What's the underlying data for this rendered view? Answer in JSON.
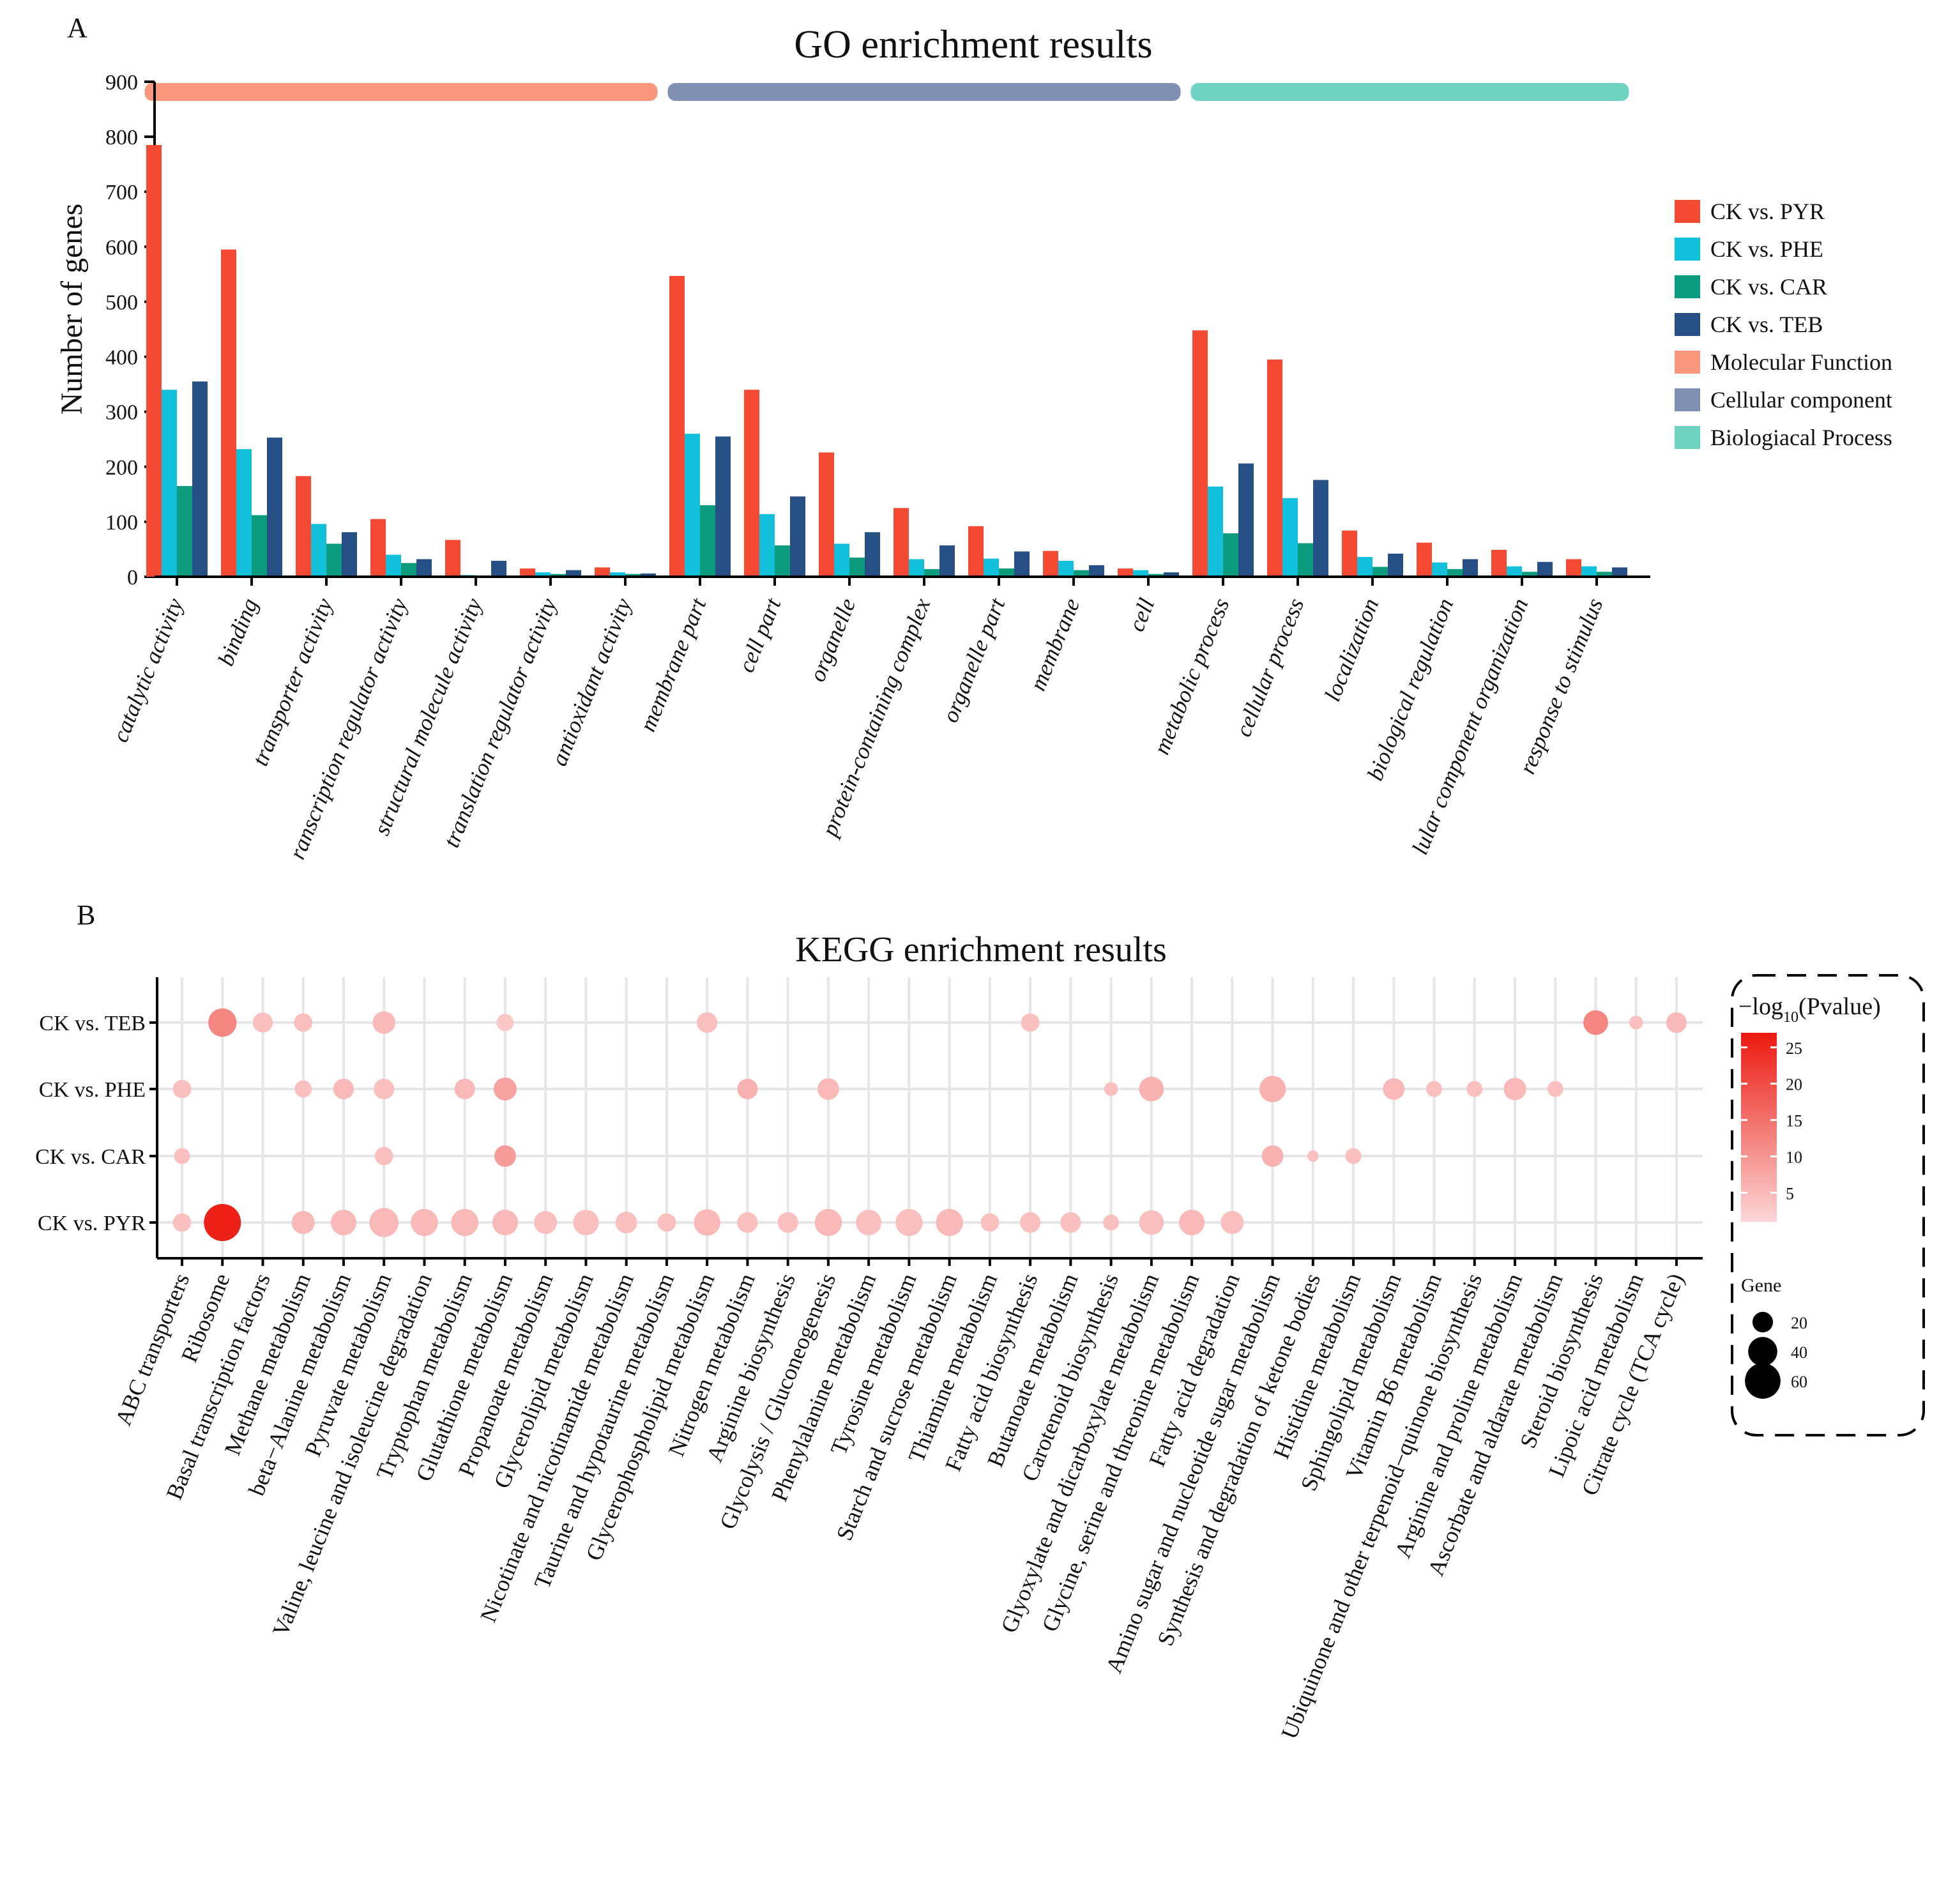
{
  "panel_a_label": "A",
  "panel_b_label": "B",
  "chart_data": [
    {
      "type": "bar",
      "title": "GO enrichment results",
      "xlabel": "",
      "ylabel": "Number of genes",
      "ylim": [
        0,
        900
      ],
      "yticks": [
        0,
        100,
        200,
        300,
        400,
        500,
        600,
        700,
        800,
        900
      ],
      "categories": [
        "catalytic activity",
        "binding",
        "transporter activity",
        "ranscription regulator activity",
        "structural molecule activity",
        "translation regulator activity",
        "antioxidant activity",
        "membrane part",
        "cell part",
        "organelle",
        "protein-containing complex",
        "organelle part",
        "membrane",
        "cell",
        "metabolic process",
        "cellular process",
        "localization",
        "biological regulation",
        "lular component organization",
        "response to stimulus"
      ],
      "series": [
        {
          "name": "CK vs. PYR",
          "color": "#f44a33",
          "values": [
            785,
            595,
            183,
            105,
            67,
            15,
            17,
            547,
            340,
            226,
            125,
            92,
            47,
            15,
            448,
            395,
            84,
            62,
            49,
            32
          ]
        },
        {
          "name": "CK vs. PHE",
          "color": "#12c0dc",
          "values": [
            340,
            232,
            96,
            40,
            3,
            8,
            8,
            260,
            114,
            60,
            32,
            33,
            29,
            12,
            164,
            143,
            36,
            26,
            19,
            19
          ]
        },
        {
          "name": "CK vs. CAR",
          "color": "#0c9c7d",
          "values": [
            165,
            112,
            60,
            25,
            2,
            5,
            5,
            130,
            57,
            35,
            14,
            15,
            12,
            5,
            79,
            61,
            18,
            14,
            9,
            9
          ]
        },
        {
          "name": "CK vs. TEB",
          "color": "#254f85",
          "values": [
            355,
            253,
            81,
            32,
            29,
            12,
            6,
            255,
            146,
            81,
            57,
            46,
            21,
            8,
            206,
            176,
            42,
            32,
            27,
            17
          ]
        }
      ],
      "groups": [
        {
          "name": "Molecular Function",
          "color": "#f8977b",
          "count": 7
        },
        {
          "name": "Cellular component",
          "color": "#8090b2",
          "count": 7
        },
        {
          "name": "Biologiacal Process",
          "color": "#6ed3c1",
          "count": 6
        }
      ],
      "legend_position": "right"
    },
    {
      "type": "scatter",
      "title": "KEGG enrichment results",
      "x_categories": [
        "ABC transporters",
        "Ribosome",
        "Basal transcription factors",
        "Methane metabolism",
        "beta−Alanine metabolism",
        "Pyruvate metabolism",
        "Valine, leucine and isoleucine degradation",
        "Tryptophan metabolism",
        "Glutathione metabolism",
        "Propanoate metabolism",
        "Glycerolipid metabolism",
        "Nicotinate and nicotinamide metabolism",
        "Taurine and hypotaurine metabolism",
        "Glycerophospholipid metabolism",
        "Nitrogen metabolism",
        "Arginine biosynthesis",
        "Glycolysis / Gluconeogenesis",
        "Phenylalanine metabolism",
        "Tyrosine metabolism",
        "Starch and sucrose metabolism",
        "Thiamine metabolism",
        "Fatty acid biosynthesis",
        "Butanoate metabolism",
        "Carotenoid biosynthesis",
        "Glyoxylate and dicarboxylate metabolism",
        "Glycine, serine and threonine metabolism",
        "Fatty acid degradation",
        "Amino sugar and nucleotide sugar metabolism",
        "Synthesis and degradation of ketone bodies",
        "Histidine metabolism",
        "Sphingolipid metabolism",
        "Vitamin B6 metabolism",
        "Ubiquinone and other terpenoid−quinone biosynthesis",
        "Arginine and proline metabolism",
        "Ascorbate and aldarate metabolism",
        "Steroid biosynthesis",
        "Lipoic acid metabolism",
        "Citrate cycle (TCA cycle)"
      ],
      "y_categories": [
        "CK vs. PYR",
        "CK vs. CAR",
        "CK vs. PHE",
        "CK vs. TEB"
      ],
      "color_legend_title": "−log",
      "color_legend_sub": "10",
      "color_legend_suffix": "(Pvalue)",
      "color_ticks": [
        5,
        10,
        15,
        20,
        25
      ],
      "color_range": [
        1,
        27
      ],
      "color_low": "#fbd6d6",
      "color_high": "#ec1a10",
      "size_legend_title": "Gene",
      "size_ticks": [
        20,
        40,
        60
      ],
      "points": [
        {
          "y": "CK vs. TEB",
          "x": 1,
          "gene": 38,
          "p": 12
        },
        {
          "y": "CK vs. TEB",
          "x": 2,
          "gene": 19,
          "p": 4
        },
        {
          "y": "CK vs. TEB",
          "x": 3,
          "gene": 16,
          "p": 4
        },
        {
          "y": "CK vs. TEB",
          "x": 5,
          "gene": 24,
          "p": 5
        },
        {
          "y": "CK vs. TEB",
          "x": 8,
          "gene": 14,
          "p": 3
        },
        {
          "y": "CK vs. TEB",
          "x": 13,
          "gene": 20,
          "p": 4
        },
        {
          "y": "CK vs. TEB",
          "x": 21,
          "gene": 16,
          "p": 4
        },
        {
          "y": "CK vs. TEB",
          "x": 35,
          "gene": 29,
          "p": 12
        },
        {
          "y": "CK vs. TEB",
          "x": 36,
          "gene": 9,
          "p": 4
        },
        {
          "y": "CK vs. TEB",
          "x": 37,
          "gene": 20,
          "p": 5
        },
        {
          "y": "CK vs. PHE",
          "x": 0,
          "gene": 16,
          "p": 4
        },
        {
          "y": "CK vs. PHE",
          "x": 3,
          "gene": 14,
          "p": 4
        },
        {
          "y": "CK vs. PHE",
          "x": 4,
          "gene": 20,
          "p": 5
        },
        {
          "y": "CK vs. PHE",
          "x": 5,
          "gene": 20,
          "p": 4
        },
        {
          "y": "CK vs. PHE",
          "x": 7,
          "gene": 20,
          "p": 5
        },
        {
          "y": "CK vs. PHE",
          "x": 8,
          "gene": 25,
          "p": 8
        },
        {
          "y": "CK vs. PHE",
          "x": 14,
          "gene": 20,
          "p": 6
        },
        {
          "y": "CK vs. PHE",
          "x": 16,
          "gene": 22,
          "p": 5
        },
        {
          "y": "CK vs. PHE",
          "x": 23,
          "gene": 9,
          "p": 4
        },
        {
          "y": "CK vs. PHE",
          "x": 24,
          "gene": 29,
          "p": 6
        },
        {
          "y": "CK vs. PHE",
          "x": 27,
          "gene": 33,
          "p": 6
        },
        {
          "y": "CK vs. PHE",
          "x": 30,
          "gene": 22,
          "p": 5
        },
        {
          "y": "CK vs. PHE",
          "x": 31,
          "gene": 12,
          "p": 4
        },
        {
          "y": "CK vs. PHE",
          "x": 32,
          "gene": 12,
          "p": 4
        },
        {
          "y": "CK vs. PHE",
          "x": 33,
          "gene": 24,
          "p": 5
        },
        {
          "y": "CK vs. PHE",
          "x": 34,
          "gene": 12,
          "p": 4
        },
        {
          "y": "CK vs. CAR",
          "x": 0,
          "gene": 12,
          "p": 4
        },
        {
          "y": "CK vs. CAR",
          "x": 5,
          "gene": 16,
          "p": 4
        },
        {
          "y": "CK vs. CAR",
          "x": 8,
          "gene": 22,
          "p": 9
        },
        {
          "y": "CK vs. CAR",
          "x": 27,
          "gene": 22,
          "p": 6
        },
        {
          "y": "CK vs. CAR",
          "x": 28,
          "gene": 6,
          "p": 4
        },
        {
          "y": "CK vs. CAR",
          "x": 29,
          "gene": 12,
          "p": 4
        },
        {
          "y": "CK vs. PYR",
          "x": 0,
          "gene": 16,
          "p": 4
        },
        {
          "y": "CK vs. PYR",
          "x": 1,
          "gene": 65,
          "p": 26
        },
        {
          "y": "CK vs. PYR",
          "x": 3,
          "gene": 25,
          "p": 5
        },
        {
          "y": "CK vs. PYR",
          "x": 4,
          "gene": 31,
          "p": 5
        },
        {
          "y": "CK vs. PYR",
          "x": 5,
          "gene": 40,
          "p": 5
        },
        {
          "y": "CK vs. PYR",
          "x": 6,
          "gene": 35,
          "p": 5
        },
        {
          "y": "CK vs. PYR",
          "x": 7,
          "gene": 35,
          "p": 5
        },
        {
          "y": "CK vs. PYR",
          "x": 8,
          "gene": 31,
          "p": 5
        },
        {
          "y": "CK vs. PYR",
          "x": 9,
          "gene": 25,
          "p": 4
        },
        {
          "y": "CK vs. PYR",
          "x": 10,
          "gene": 31,
          "p": 4
        },
        {
          "y": "CK vs. PYR",
          "x": 11,
          "gene": 22,
          "p": 4
        },
        {
          "y": "CK vs. PYR",
          "x": 12,
          "gene": 16,
          "p": 4
        },
        {
          "y": "CK vs. PYR",
          "x": 13,
          "gene": 33,
          "p": 5
        },
        {
          "y": "CK vs. PYR",
          "x": 14,
          "gene": 20,
          "p": 4
        },
        {
          "y": "CK vs. PYR",
          "x": 15,
          "gene": 20,
          "p": 4
        },
        {
          "y": "CK vs. PYR",
          "x": 16,
          "gene": 35,
          "p": 5
        },
        {
          "y": "CK vs. PYR",
          "x": 17,
          "gene": 31,
          "p": 4
        },
        {
          "y": "CK vs. PYR",
          "x": 18,
          "gene": 35,
          "p": 4
        },
        {
          "y": "CK vs. PYR",
          "x": 19,
          "gene": 35,
          "p": 5
        },
        {
          "y": "CK vs. PYR",
          "x": 20,
          "gene": 16,
          "p": 4
        },
        {
          "y": "CK vs. PYR",
          "x": 21,
          "gene": 20,
          "p": 4
        },
        {
          "y": "CK vs. PYR",
          "x": 22,
          "gene": 20,
          "p": 4
        },
        {
          "y": "CK vs. PYR",
          "x": 23,
          "gene": 12,
          "p": 4
        },
        {
          "y": "CK vs. PYR",
          "x": 24,
          "gene": 29,
          "p": 4
        },
        {
          "y": "CK vs. PYR",
          "x": 25,
          "gene": 31,
          "p": 5
        },
        {
          "y": "CK vs. PYR",
          "x": 26,
          "gene": 25,
          "p": 4
        }
      ]
    }
  ]
}
